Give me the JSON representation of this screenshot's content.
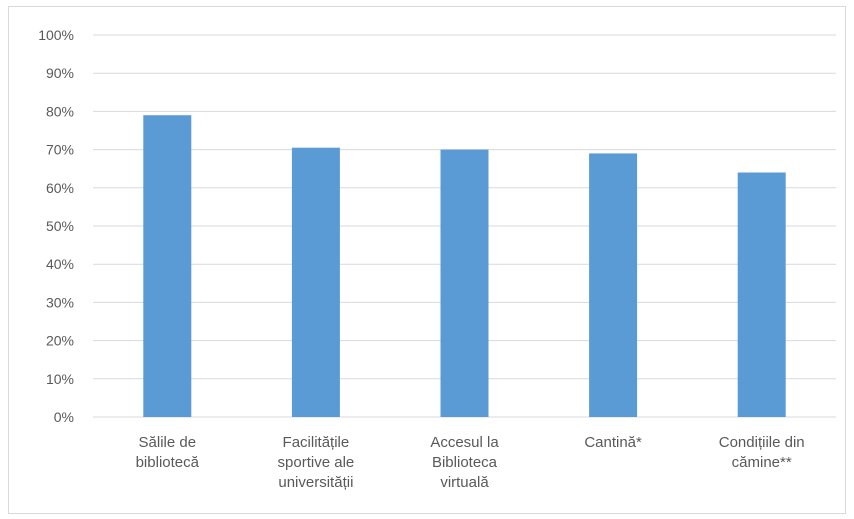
{
  "chart_data": {
    "type": "bar",
    "categories": [
      [
        "Sălile de",
        "bibliotecă"
      ],
      [
        "Facilitățile",
        "sportive ale",
        "universității"
      ],
      [
        "Accesul la",
        "Biblioteca",
        "virtuală"
      ],
      [
        "Cantină*"
      ],
      [
        "Condițiile din",
        "cămine**"
      ]
    ],
    "values": [
      0.79,
      0.705,
      0.7,
      0.69,
      0.64
    ],
    "yticks": [
      "0%",
      "10%",
      "20%",
      "30%",
      "40%",
      "50%",
      "60%",
      "70%",
      "80%",
      "90%",
      "100%"
    ],
    "ylim": [
      0,
      1
    ],
    "grid": true,
    "legend": "none",
    "colors": {
      "bar": "#5b9bd5",
      "grid": "#d9d9d9",
      "text": "#595959"
    },
    "title": "",
    "xlabel": "",
    "ylabel": ""
  }
}
